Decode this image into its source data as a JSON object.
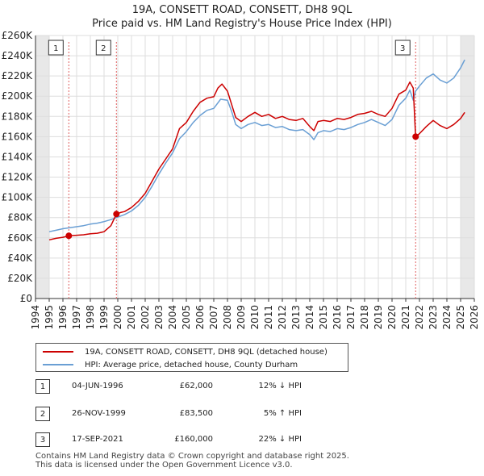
{
  "header": {
    "title_line1": "19A, CONSETT ROAD, CONSETT, DH8 9QL",
    "title_line2": "Price paid vs. HM Land Registry's House Price Index (HPI)"
  },
  "chart_data": {
    "type": "line",
    "xlim": [
      1994,
      2026
    ],
    "ylim": [
      0,
      260000
    ],
    "x_ticks": [
      "1994",
      "1995",
      "1996",
      "1997",
      "1998",
      "1999",
      "2000",
      "2001",
      "2002",
      "2003",
      "2004",
      "2005",
      "2006",
      "2007",
      "2008",
      "2009",
      "2010",
      "2011",
      "2012",
      "2013",
      "2014",
      "2015",
      "2016",
      "2017",
      "2018",
      "2019",
      "2020",
      "2021",
      "2022",
      "2023",
      "2024",
      "2025",
      "2026"
    ],
    "y_ticks": [
      "£0",
      "£20K",
      "£40K",
      "£60K",
      "£80K",
      "£100K",
      "£120K",
      "£140K",
      "£160K",
      "£180K",
      "£200K",
      "£220K",
      "£240K",
      "£260K"
    ],
    "y_tick_values": [
      0,
      20000,
      40000,
      60000,
      80000,
      100000,
      120000,
      140000,
      160000,
      180000,
      200000,
      220000,
      240000,
      260000
    ],
    "grid": true,
    "series": [
      {
        "name": "19A, CONSETT ROAD, CONSETT, DH8 9QL (detached house)",
        "color": "#cc0000",
        "x": [
          1995.0,
          1995.5,
          1996.0,
          1996.43,
          1997.0,
          1997.5,
          1998.0,
          1998.5,
          1999.0,
          1999.5,
          1999.9,
          2000.2,
          2000.5,
          2001.0,
          2001.5,
          2002.0,
          2002.5,
          2003.0,
          2003.5,
          2004.0,
          2004.5,
          2005.0,
          2005.5,
          2006.0,
          2006.5,
          2007.0,
          2007.3,
          2007.6,
          2008.0,
          2008.3,
          2008.6,
          2009.0,
          2009.5,
          2010.0,
          2010.5,
          2011.0,
          2011.5,
          2012.0,
          2012.5,
          2013.0,
          2013.5,
          2014.0,
          2014.3,
          2014.6,
          2015.0,
          2015.5,
          2016.0,
          2016.5,
          2017.0,
          2017.5,
          2018.0,
          2018.5,
          2019.0,
          2019.5,
          2020.0,
          2020.5,
          2021.0,
          2021.3,
          2021.55,
          2021.72,
          2022.0,
          2022.5,
          2023.0,
          2023.5,
          2024.0,
          2024.5,
          2025.0,
          2025.3
        ],
        "values": [
          58000,
          59500,
          60500,
          62000,
          62500,
          63000,
          64000,
          64500,
          66000,
          72000,
          83500,
          85000,
          86000,
          90000,
          96000,
          104000,
          116000,
          128000,
          138000,
          148000,
          168000,
          174000,
          185000,
          194000,
          198000,
          199500,
          208000,
          212000,
          205000,
          192000,
          179000,
          175000,
          180000,
          184000,
          180000,
          182000,
          178000,
          180000,
          177000,
          176000,
          178000,
          170000,
          166000,
          175000,
          176000,
          175000,
          178000,
          177000,
          179000,
          182000,
          183000,
          185000,
          182000,
          180000,
          188000,
          202000,
          206000,
          214000,
          208000,
          160000,
          163000,
          170000,
          176000,
          171000,
          168000,
          172000,
          178000,
          184000
        ]
      },
      {
        "name": "HPI: Average price, detached house, County Durham",
        "color": "#6a9fd4",
        "x": [
          1995.0,
          1995.5,
          1996.0,
          1996.5,
          1997.0,
          1997.5,
          1998.0,
          1998.5,
          1999.0,
          1999.5,
          2000.0,
          2000.5,
          2001.0,
          2001.5,
          2002.0,
          2002.5,
          2003.0,
          2003.5,
          2004.0,
          2004.5,
          2005.0,
          2005.5,
          2006.0,
          2006.5,
          2007.0,
          2007.5,
          2008.0,
          2008.3,
          2008.6,
          2009.0,
          2009.5,
          2010.0,
          2010.5,
          2011.0,
          2011.5,
          2012.0,
          2012.5,
          2013.0,
          2013.5,
          2014.0,
          2014.3,
          2014.6,
          2015.0,
          2015.5,
          2016.0,
          2016.5,
          2017.0,
          2017.5,
          2018.0,
          2018.5,
          2019.0,
          2019.5,
          2020.0,
          2020.5,
          2021.0,
          2021.3,
          2021.55,
          2021.72,
          2022.0,
          2022.5,
          2023.0,
          2023.5,
          2024.0,
          2024.5,
          2025.0,
          2025.3
        ],
        "values": [
          66000,
          67500,
          69000,
          70000,
          71000,
          72000,
          73500,
          74500,
          76000,
          78000,
          80500,
          83000,
          86500,
          92000,
          100000,
          111000,
          123000,
          134000,
          144000,
          158000,
          165000,
          174000,
          181000,
          186000,
          188000,
          197000,
          196000,
          185000,
          172000,
          168000,
          172000,
          174000,
          171000,
          172000,
          169000,
          170000,
          167000,
          166000,
          167000,
          162000,
          157000,
          164000,
          166000,
          165000,
          168000,
          167000,
          169000,
          172000,
          174000,
          177000,
          174000,
          171000,
          177000,
          191000,
          198000,
          206000,
          196000,
          205000,
          210000,
          218000,
          222000,
          216000,
          213000,
          218000,
          228000,
          236000
        ]
      }
    ],
    "sales": [
      {
        "id": "1",
        "x": 1996.43,
        "value": 62000
      },
      {
        "id": "2",
        "x": 1999.9,
        "value": 83500
      },
      {
        "id": "3",
        "x": 2021.72,
        "value": 160000
      }
    ],
    "shaded_periods": [
      [
        1994,
        1995
      ],
      [
        2025,
        2026
      ]
    ]
  },
  "legend": {
    "items": [
      {
        "label": "19A, CONSETT ROAD, CONSETT, DH8 9QL (detached house)",
        "color": "#cc0000"
      },
      {
        "label": "HPI: Average price, detached house, County Durham",
        "color": "#6a9fd4"
      }
    ]
  },
  "sales_table": [
    {
      "num": "1",
      "date": "04-JUN-1996",
      "price": "£62,000",
      "hpi": "12% ↓ HPI"
    },
    {
      "num": "2",
      "date": "26-NOV-1999",
      "price": "£83,500",
      "hpi": "5% ↑ HPI"
    },
    {
      "num": "3",
      "date": "17-SEP-2021",
      "price": "£160,000",
      "hpi": "22% ↓ HPI"
    }
  ],
  "footer": {
    "line1": "Contains HM Land Registry data © Crown copyright and database right 2025.",
    "line2": "This data is licensed under the Open Government Licence v3.0."
  }
}
